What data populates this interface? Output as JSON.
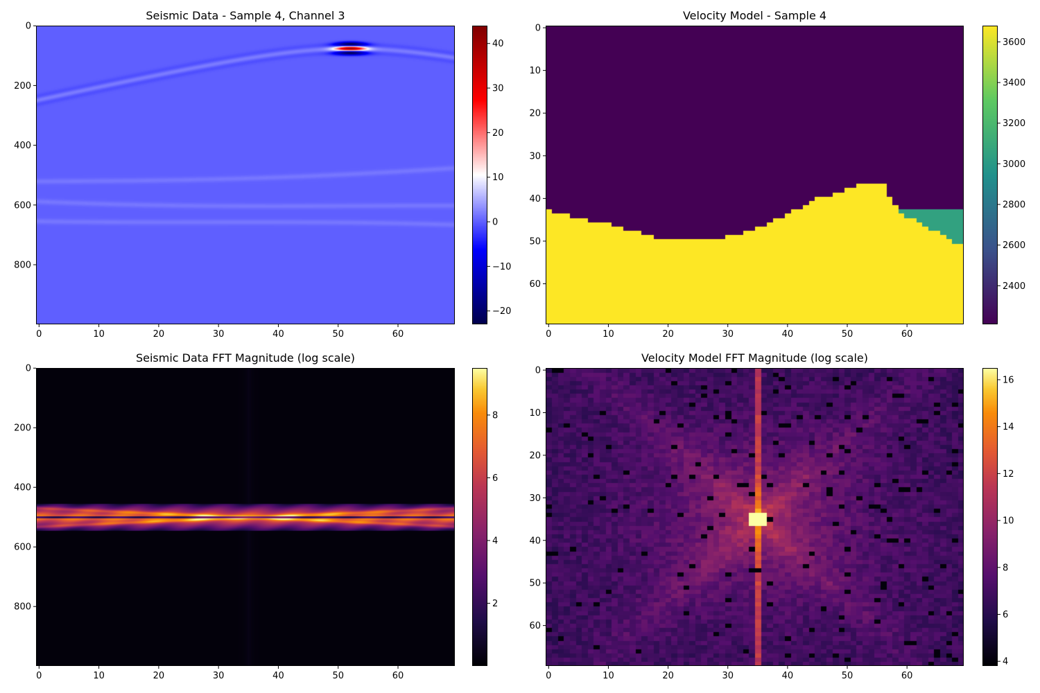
{
  "chart_data": [
    {
      "type": "heatmap",
      "title": "Seismic Data - Sample 4, Channel 3",
      "xlabel": "",
      "ylabel": "",
      "x_ticks": [
        0,
        10,
        20,
        30,
        40,
        50,
        60
      ],
      "y_ticks": [
        0,
        200,
        400,
        600,
        800
      ],
      "xlim": [
        -0.5,
        69.5
      ],
      "ylim": [
        999.5,
        -0.5
      ],
      "colormap": "seismic",
      "colorbar": {
        "range": [
          -23,
          44
        ],
        "ticks": [
          -20,
          -10,
          0,
          10,
          20,
          30,
          40
        ]
      },
      "features": {
        "apex": {
          "x": 52,
          "y": 75,
          "peak": 44
        },
        "direct_wave": {
          "left_end": {
            "x": 0,
            "y": 310
          },
          "right_end": {
            "x": 69.5,
            "y": 150
          }
        },
        "reflections": [
          {
            "left_y": 520,
            "right_y": 470
          },
          {
            "left_y": 575,
            "right_y": 610
          },
          {
            "left_y": 640,
            "right_y": 680
          }
        ]
      }
    },
    {
      "type": "heatmap",
      "title": "Velocity Model - Sample 4",
      "xlabel": "",
      "ylabel": "",
      "x_ticks": [
        0,
        10,
        20,
        30,
        40,
        50,
        60
      ],
      "y_ticks": [
        0,
        10,
        20,
        30,
        40,
        50,
        60
      ],
      "xlim": [
        -0.5,
        69.5
      ],
      "ylim": [
        69.5,
        -0.5
      ],
      "colormap": "viridis",
      "colorbar": {
        "range": [
          2210,
          3680
        ],
        "ticks": [
          2400,
          2600,
          2800,
          3000,
          3200,
          3400,
          3600
        ]
      },
      "layers": {
        "upper_velocity": 2210,
        "lower_velocity": 3680,
        "wedge_velocity": 3050
      }
    },
    {
      "type": "heatmap",
      "title": "Seismic Data FFT Magnitude (log scale)",
      "xlabel": "",
      "ylabel": "",
      "x_ticks": [
        0,
        10,
        20,
        30,
        40,
        50,
        60
      ],
      "y_ticks": [
        0,
        200,
        400,
        600,
        800
      ],
      "xlim": [
        -0.5,
        69.5
      ],
      "ylim": [
        999.5,
        -0.5
      ],
      "colormap": "inferno",
      "colorbar": {
        "range": [
          0,
          9.5
        ],
        "ticks": [
          2,
          4,
          6,
          8
        ]
      },
      "features": {
        "band_center_y": 500,
        "band_halfwidth": 45,
        "center_x": 35
      }
    },
    {
      "type": "heatmap",
      "title": "Velocity Model FFT Magnitude (log scale)",
      "xlabel": "",
      "ylabel": "",
      "x_ticks": [
        0,
        10,
        20,
        30,
        40,
        50,
        60
      ],
      "y_ticks": [
        0,
        10,
        20,
        30,
        40,
        50,
        60
      ],
      "xlim": [
        -0.5,
        69.5
      ],
      "ylim": [
        69.5,
        -0.5
      ],
      "colormap": "inferno",
      "colorbar": {
        "range": [
          3.8,
          16.5
        ],
        "ticks": [
          4,
          6,
          8,
          10,
          12,
          14,
          16
        ]
      },
      "features": {
        "center": {
          "x": 35,
          "y": 35,
          "peak": 16.5
        }
      }
    }
  ]
}
